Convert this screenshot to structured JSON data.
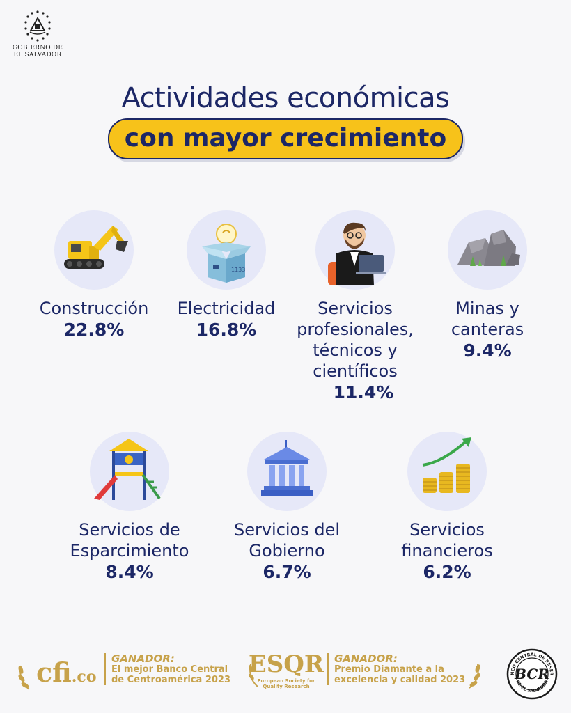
{
  "header": {
    "gov_logo_icon": "el-salvador-coat-of-arms-icon",
    "gov_line1": "GOBIERNO DE",
    "gov_line2": "EL SALVADOR"
  },
  "title": {
    "line1": "Actividades económicas",
    "highlight": "con mayor crecimiento"
  },
  "items": [
    {
      "icon": "excavator-icon",
      "label_lines": [
        "Construcción"
      ],
      "value": "22.8%"
    },
    {
      "icon": "lightbulb-box-icon",
      "label_lines": [
        "Electricidad"
      ],
      "value": "16.8%"
    },
    {
      "icon": "professional-laptop-icon",
      "label_lines": [
        "Servicios",
        "profesionales,",
        "técnicos y",
        "científicos"
      ],
      "value": "11.4%"
    },
    {
      "icon": "rocks-icon",
      "label_lines": [
        "Minas y",
        "canteras"
      ],
      "value": "9.4%"
    },
    {
      "icon": "playground-icon",
      "label_lines": [
        "Servicios de",
        "Esparcimiento"
      ],
      "value": "8.4%"
    },
    {
      "icon": "government-building-icon",
      "label_lines": [
        "Servicios del",
        "Gobierno"
      ],
      "value": "6.7%"
    },
    {
      "icon": "coins-growth-icon",
      "label_lines": [
        "Servicios",
        "financieros"
      ],
      "value": "6.2%"
    }
  ],
  "footer": {
    "cfi_brand": "cfi",
    "cfi_suffix": ".co",
    "award1_title": "GANADOR:",
    "award1_line1": "El mejor Banco Central",
    "award1_line2": "de Centroamérica 2023",
    "esqr_brand": "ESQR",
    "esqr_line1": "European Society for",
    "esqr_line2": "Quality Research",
    "award2_title": "GANADOR:",
    "award2_line1": "Premio Diamante a la",
    "award2_line2": "excelencia y calidad 2023",
    "bcr_brand": "BCR",
    "bcr_ring_top": "BANCO CENTRAL DE RESERVA",
    "bcr_ring_bottom": "DE EL SALVADOR"
  },
  "colors": {
    "navy": "#1c2766",
    "yellow": "#f7c21a",
    "gold": "#c7a24a",
    "circle_bg": "#e6e8f8",
    "page_bg": "#f7f7f9"
  }
}
